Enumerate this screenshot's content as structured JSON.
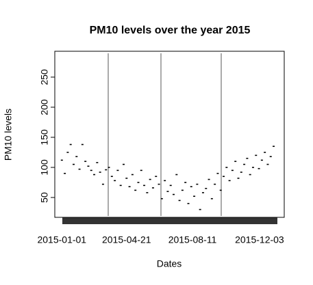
{
  "chart_data": {
    "type": "scatter",
    "title": "PM10 levels over the year 2015",
    "xlabel": "Dates",
    "ylabel": "PM10 levels",
    "x": [
      "2015-01-01",
      "2015-01-06",
      "2015-01-11",
      "2015-01-16",
      "2015-01-21",
      "2015-01-26",
      "2015-01-31",
      "2015-02-05",
      "2015-02-10",
      "2015-02-15",
      "2015-02-20",
      "2015-02-25",
      "2015-03-02",
      "2015-03-07",
      "2015-03-12",
      "2015-03-17",
      "2015-03-22",
      "2015-03-27",
      "2015-04-01",
      "2015-04-06",
      "2015-04-11",
      "2015-04-16",
      "2015-04-21",
      "2015-04-26",
      "2015-05-01",
      "2015-05-06",
      "2015-05-11",
      "2015-05-16",
      "2015-05-21",
      "2015-05-26",
      "2015-05-31",
      "2015-06-05",
      "2015-06-10",
      "2015-06-15",
      "2015-06-20",
      "2015-06-25",
      "2015-06-30",
      "2015-07-05",
      "2015-07-10",
      "2015-07-15",
      "2015-07-20",
      "2015-07-25",
      "2015-07-30",
      "2015-08-04",
      "2015-08-09",
      "2015-08-14",
      "2015-08-19",
      "2015-08-24",
      "2015-08-29",
      "2015-09-03",
      "2015-09-08",
      "2015-09-13",
      "2015-09-18",
      "2015-09-23",
      "2015-09-28",
      "2015-10-03",
      "2015-10-08",
      "2015-10-13",
      "2015-10-18",
      "2015-10-23",
      "2015-10-28",
      "2015-11-02",
      "2015-11-07",
      "2015-11-12",
      "2015-11-17",
      "2015-11-22",
      "2015-11-27",
      "2015-12-02",
      "2015-12-07",
      "2015-12-12",
      "2015-12-17",
      "2015-12-22",
      "2015-12-27"
    ],
    "values": [
      112,
      90,
      125,
      138,
      105,
      118,
      97,
      138,
      110,
      102,
      95,
      88,
      108,
      92,
      72,
      96,
      100,
      85,
      78,
      95,
      70,
      105,
      82,
      68,
      88,
      62,
      75,
      95,
      70,
      58,
      80,
      66,
      85,
      72,
      48,
      78,
      60,
      70,
      55,
      88,
      45,
      62,
      75,
      40,
      68,
      52,
      72,
      30,
      58,
      65,
      80,
      48,
      72,
      90,
      62,
      85,
      100,
      78,
      95,
      110,
      82,
      92,
      105,
      115,
      88,
      100,
      120,
      98,
      112,
      125,
      105,
      118,
      135
    ],
    "color": "#000000",
    "xlim": [
      "2014-12-20",
      "2016-01-14"
    ],
    "xticks": [
      "2015-01-01",
      "2015-04-21",
      "2015-08-11",
      "2015-12-03"
    ],
    "ylim": [
      17,
      293
    ],
    "yticks": [
      50,
      100,
      150,
      200,
      250
    ]
  }
}
